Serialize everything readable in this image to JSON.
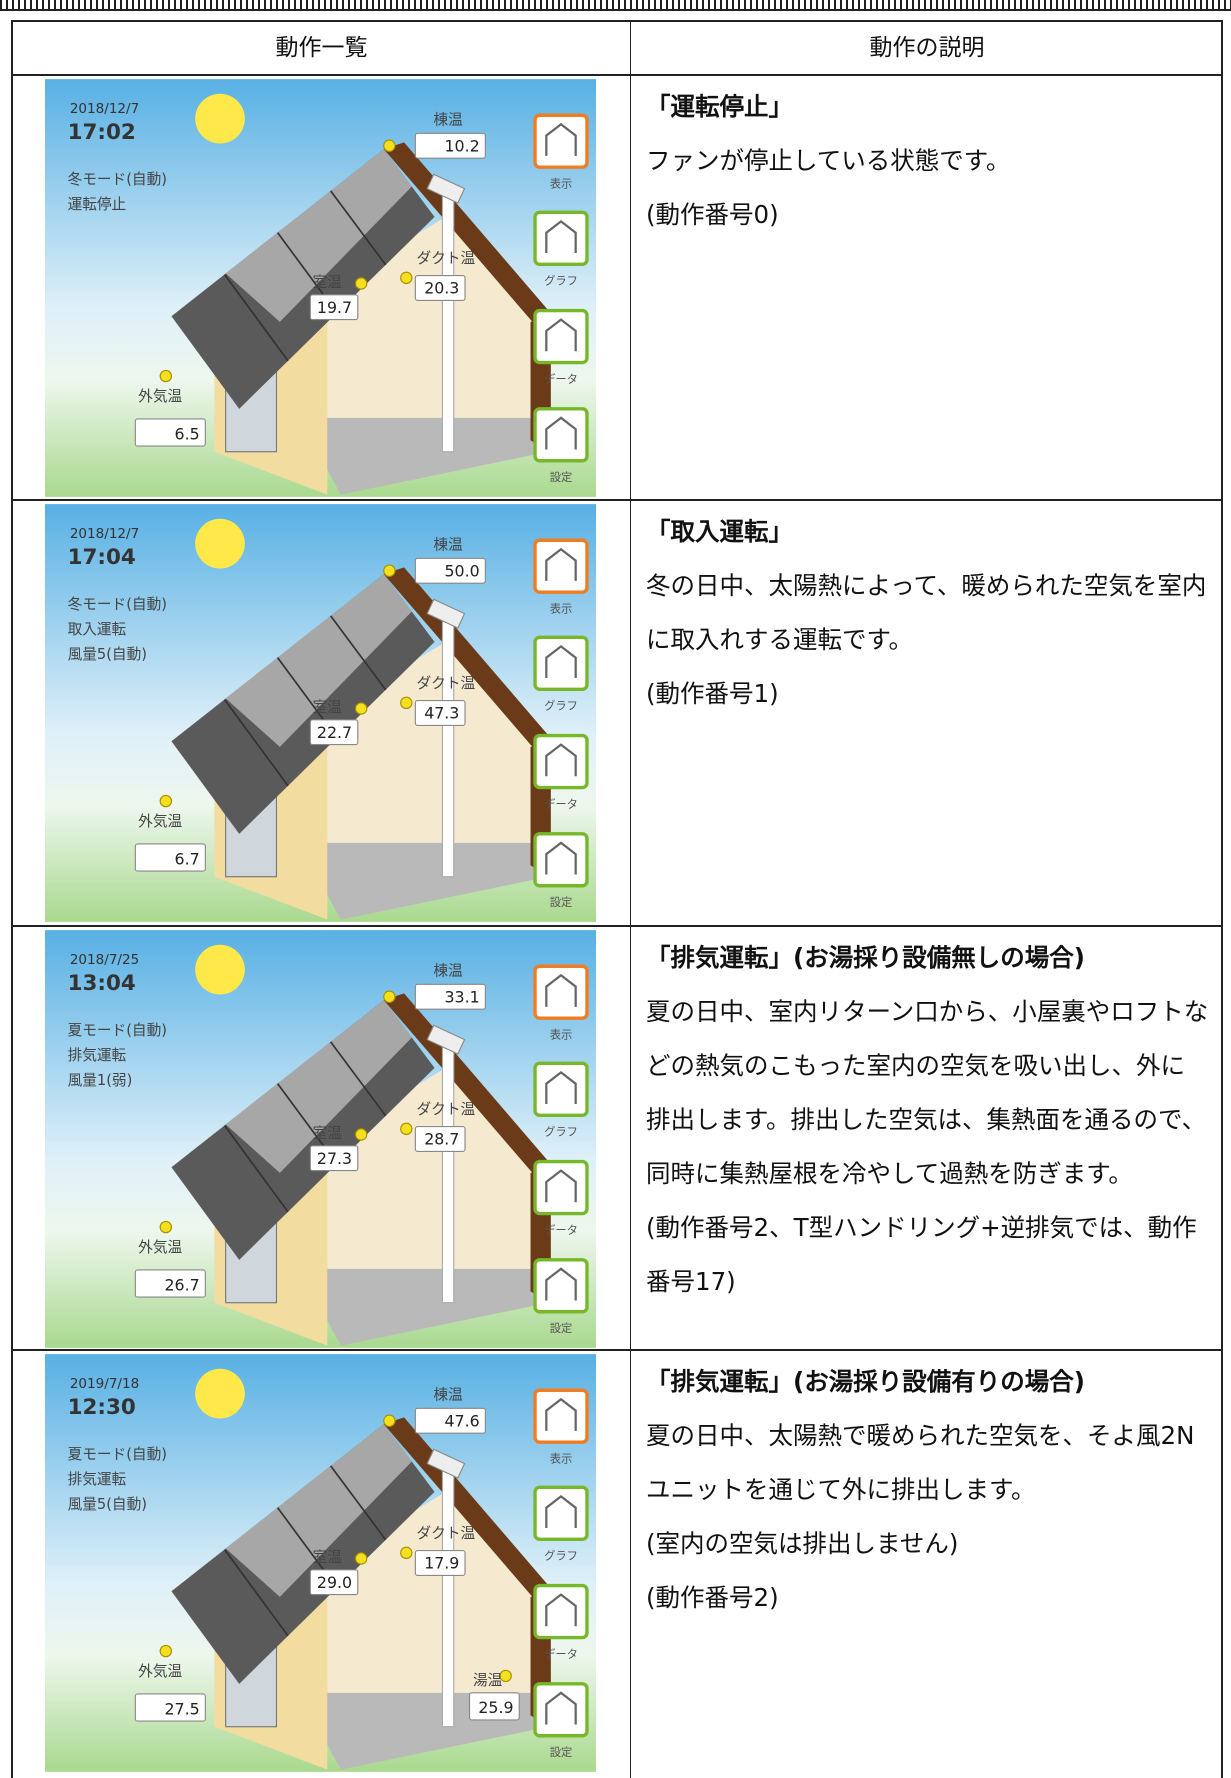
{
  "header": [
    "動作一覧",
    "動作の説明"
  ],
  "rows": [
    {
      "panel": {
        "date": "2018/12/7",
        "time": "17:02",
        "status": [
          "冬モード(自動)",
          "運転停止"
        ],
        "readings": [
          {
            "label": "棟温",
            "value": "10.2"
          },
          {
            "label": "ダクト温",
            "value": "20.3"
          },
          {
            "label": "室温",
            "value": "19.7"
          },
          {
            "label": "外気温",
            "value": "6.5"
          }
        ],
        "buttons": [
          "表示",
          "グラフ",
          "データ",
          "設定"
        ]
      },
      "description": {
        "title": "「運転停止」",
        "paragraphs": [
          "ファンが停止している状態です。",
          "(動作番号0)"
        ]
      }
    },
    {
      "panel": {
        "date": "2018/12/7",
        "time": "17:04",
        "status": [
          "冬モード(自動)",
          "取入運転",
          "風量5(自動)"
        ],
        "readings": [
          {
            "label": "棟温",
            "value": "50.0"
          },
          {
            "label": "ダクト温",
            "value": "47.3"
          },
          {
            "label": "室温",
            "value": "22.7"
          },
          {
            "label": "外気温",
            "value": "6.7"
          }
        ],
        "buttons": [
          "表示",
          "グラフ",
          "データ",
          "設定"
        ]
      },
      "description": {
        "title": "「取入運転」",
        "paragraphs": [
          "冬の日中、太陽熱によって、暖められた空気を室内に取入れする運転です。",
          "(動作番号1)"
        ]
      }
    },
    {
      "panel": {
        "date": "2018/7/25",
        "time": "13:04",
        "status": [
          "夏モード(自動)",
          "排気運転",
          "風量1(弱)"
        ],
        "readings": [
          {
            "label": "棟温",
            "value": "33.1"
          },
          {
            "label": "ダクト温",
            "value": "28.7"
          },
          {
            "label": "室温",
            "value": "27.3"
          },
          {
            "label": "外気温",
            "value": "26.7"
          }
        ],
        "buttons": [
          "表示",
          "グラフ",
          "データ",
          "設定"
        ]
      },
      "description": {
        "title": "「排気運転」(お湯採り設備無しの場合)",
        "paragraphs": [
          "夏の日中、室内リターン口から、小屋裏やロフトなどの熱気のこもった室内の空気を吸い出し、外に排出します。排出した空気は、集熱面を通るので、同時に集熱屋根を冷やして過熱を防ぎます。",
          "(動作番号2、T型ハンドリング+逆排気では、動作番号17)"
        ]
      }
    },
    {
      "panel": {
        "date": "2019/7/18",
        "time": "12:30",
        "status": [
          "夏モード(自動)",
          "排気運転",
          "風量5(自動)"
        ],
        "readings": [
          {
            "label": "棟温",
            "value": "47.6"
          },
          {
            "label": "ダクト温",
            "value": "17.9"
          },
          {
            "label": "室温",
            "value": "29.0"
          },
          {
            "label": "外気温",
            "value": "27.5"
          },
          {
            "label": "湯温",
            "value": "25.9"
          }
        ],
        "buttons": [
          "表示",
          "グラフ",
          "データ",
          "設定"
        ]
      },
      "description": {
        "title": "「排気運転」(お湯採り設備有りの場合)",
        "paragraphs": [
          "夏の日中、太陽熱で暖められた空気を、そよ風2Nユニットを通じて外に排出します。",
          " (室内の空気は排出しません)",
          "(動作番号2)"
        ]
      }
    }
  ]
}
